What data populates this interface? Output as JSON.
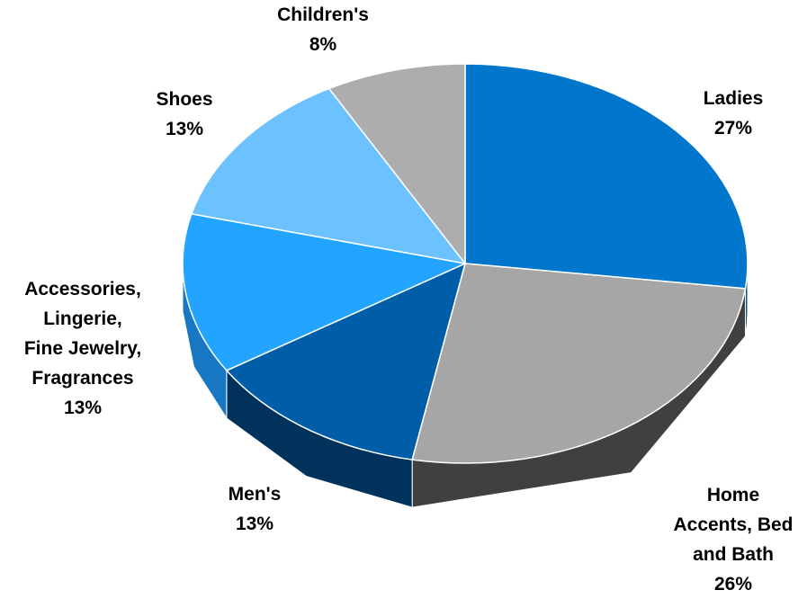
{
  "chart_data": {
    "type": "pie",
    "title": "",
    "slices": [
      {
        "label_lines": [
          "Ladies",
          "27%"
        ],
        "value": 27,
        "color": "#0077CC",
        "side_color": "#004F8A"
      },
      {
        "label_lines": [
          "Home",
          "Accents, Bed",
          "and Bath",
          "26%"
        ],
        "value": 26,
        "color": "#A6A6A6",
        "side_color": "#404040"
      },
      {
        "label_lines": [
          "Men's",
          "13%"
        ],
        "value": 13,
        "color": "#005EA8",
        "side_color": "#00325C"
      },
      {
        "label_lines": [
          "Accessories,",
          "Lingerie,",
          "Fine Jewelry,",
          "Fragrances",
          "13%"
        ],
        "value": 13,
        "color": "#22A4FF",
        "side_color": "#1877C2"
      },
      {
        "label_lines": [
          "Shoes",
          "13%"
        ],
        "value": 13,
        "color": "#6BC2FF",
        "side_color": "#4A94CC"
      },
      {
        "label_lines": [
          "Children's",
          "8%"
        ],
        "value": 8,
        "color": "#ADADAD",
        "side_color": "#6E6E6E"
      }
    ]
  }
}
